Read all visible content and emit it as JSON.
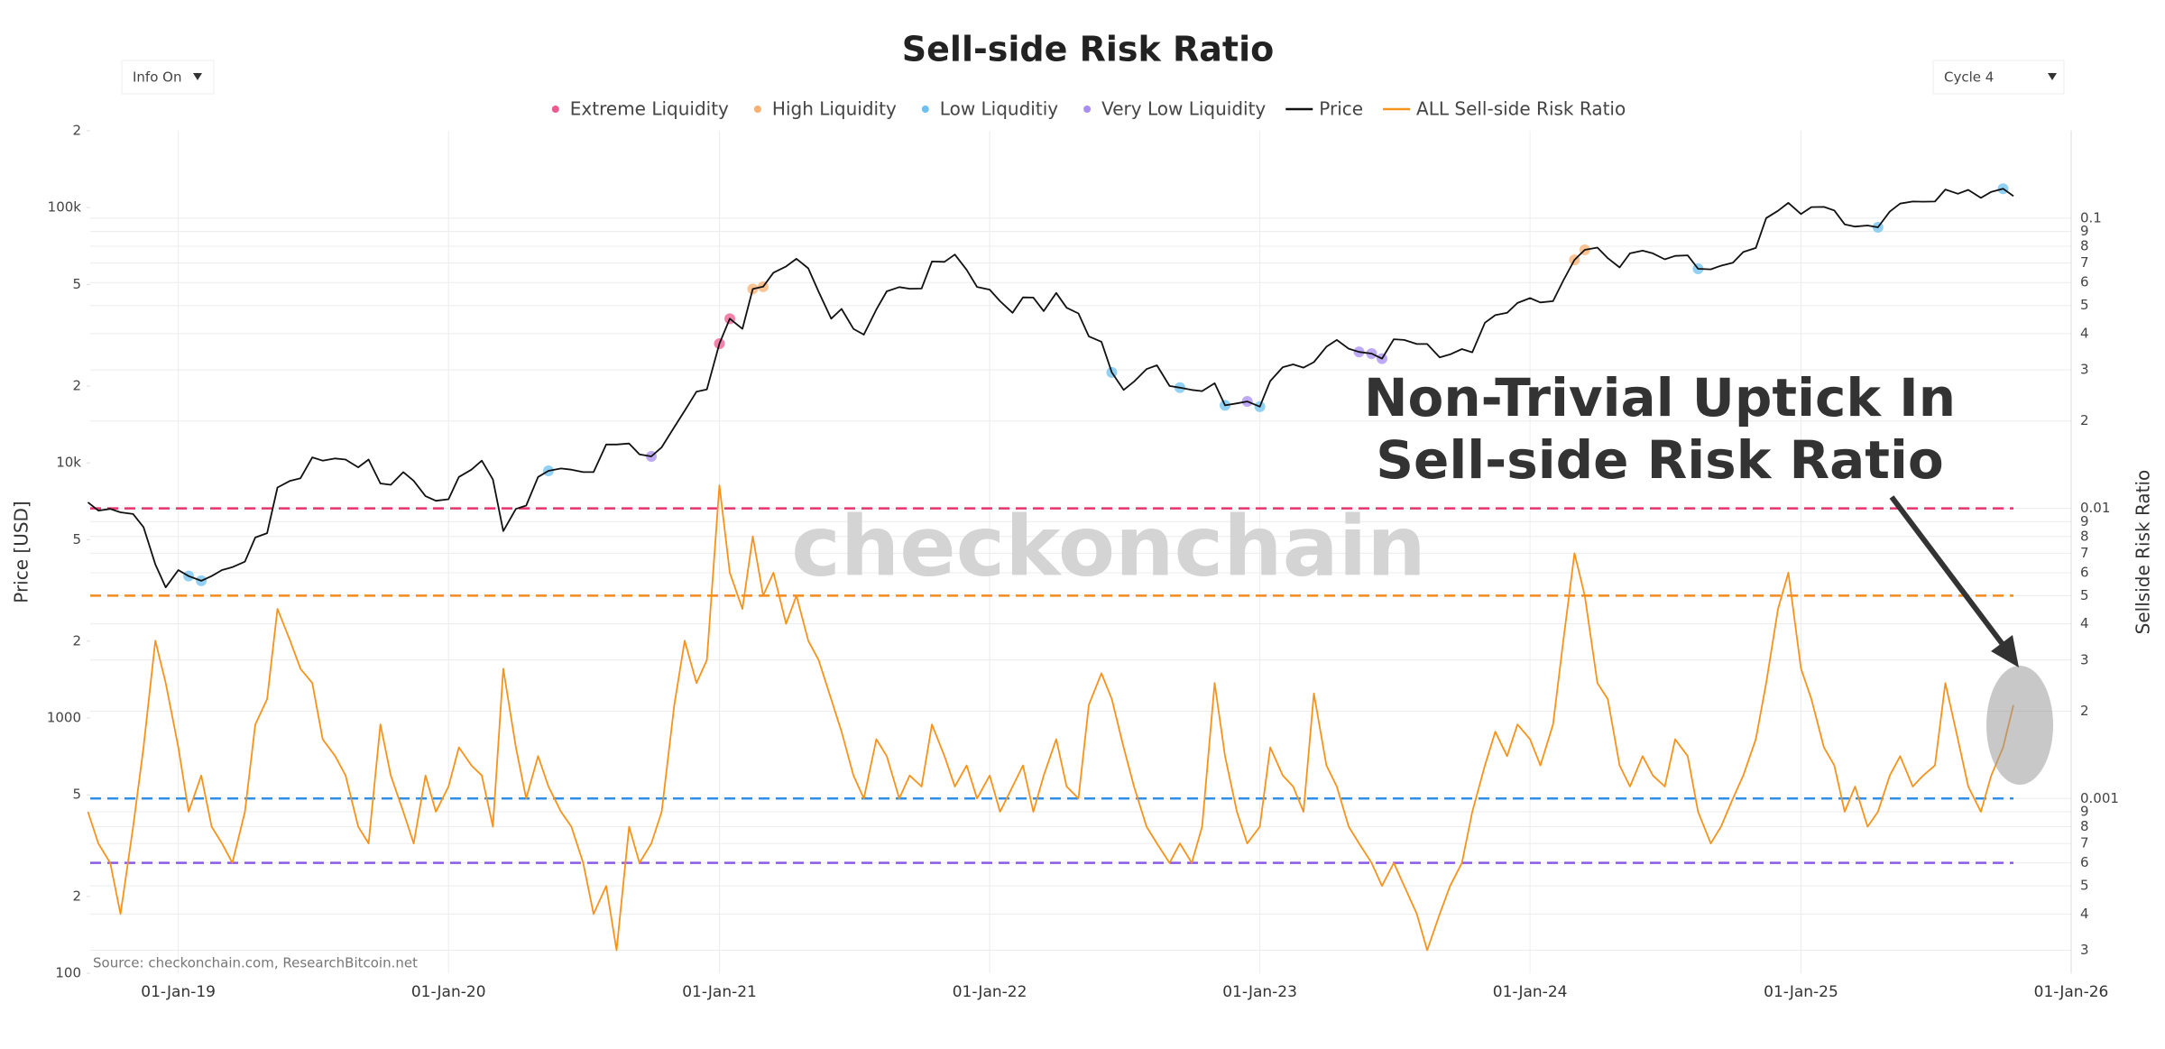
{
  "controls": {
    "info": "Info On",
    "cycle": "Cycle 4"
  },
  "chart_data": {
    "type": "line",
    "title": "Sell-side Risk Ratio",
    "y_label": "Price [USD]",
    "y2_label": "Sellside Risk Ratio",
    "watermark": "checkonchain",
    "source": "Source: checkonchain.com, ResearchBitcoin.net",
    "annotation": [
      "Non-Trivial Uptick In",
      "Sell-side Risk Ratio"
    ],
    "ylog": true,
    "y2log": true,
    "grid": true,
    "xlim": [
      "2018-09-04",
      "2026-01-01"
    ],
    "xticks": [
      {
        "value": "2019-01-01",
        "label": "01-Jan-19"
      },
      {
        "value": "2020-01-01",
        "label": "01-Jan-20"
      },
      {
        "value": "2021-01-01",
        "label": "01-Jan-21"
      },
      {
        "value": "2022-01-01",
        "label": "01-Jan-22"
      },
      {
        "value": "2023-01-01",
        "label": "01-Jan-23"
      },
      {
        "value": "2024-01-01",
        "label": "01-Jan-24"
      },
      {
        "value": "2025-01-01",
        "label": "01-Jan-25"
      },
      {
        "value": "2026-01-01",
        "label": "01-Jan-26"
      }
    ],
    "ylim": [
      100,
      200000
    ],
    "yticks": [
      100,
      {
        "value": 200,
        "label": "2"
      },
      {
        "value": 500,
        "label": "5"
      },
      1000,
      {
        "value": 2000,
        "label": "2"
      },
      {
        "value": 5000,
        "label": "5"
      },
      {
        "value": 10000,
        "label": "10k"
      },
      {
        "value": 20000,
        "label": "2"
      },
      {
        "value": 50000,
        "label": "5"
      },
      {
        "value": 100000,
        "label": "100k"
      },
      {
        "value": 200000,
        "label": "2"
      }
    ],
    "y2lim": [
      0.00025,
      0.2
    ],
    "y2ticks": [
      {
        "value": 0.0003,
        "label": "3"
      },
      {
        "value": 0.0004,
        "label": "4"
      },
      {
        "value": 0.0005,
        "label": "5"
      },
      {
        "value": 0.0006,
        "label": "6"
      },
      {
        "value": 0.0007,
        "label": "7"
      },
      {
        "value": 0.0008,
        "label": "8"
      },
      {
        "value": 0.0009,
        "label": "9"
      },
      0.001,
      {
        "value": 0.002,
        "label": "2"
      },
      {
        "value": 0.003,
        "label": "3"
      },
      {
        "value": 0.004,
        "label": "4"
      },
      {
        "value": 0.005,
        "label": "5"
      },
      {
        "value": 0.006,
        "label": "6"
      },
      {
        "value": 0.007,
        "label": "7"
      },
      {
        "value": 0.008,
        "label": "8"
      },
      {
        "value": 0.009,
        "label": "9"
      },
      0.01,
      {
        "value": 0.02,
        "label": "2"
      },
      {
        "value": 0.03,
        "label": "3"
      },
      {
        "value": 0.04,
        "label": "4"
      },
      {
        "value": 0.05,
        "label": "5"
      },
      {
        "value": 0.06,
        "label": "6"
      },
      {
        "value": 0.07,
        "label": "7"
      },
      {
        "value": 0.08,
        "label": "8"
      },
      {
        "value": 0.09,
        "label": "9"
      },
      0.1
    ],
    "thresholds": [
      {
        "value": 0.01,
        "color": "#e8336d"
      },
      {
        "value": 0.005,
        "color": "#f58a1f"
      },
      {
        "value": 0.001,
        "color": "#2f8fe8"
      },
      {
        "value": 0.0006,
        "color": "#8a5be8"
      }
    ],
    "x": [
      "2018-09-01",
      "2018-09-15",
      "2018-10-01",
      "2018-10-15",
      "2018-11-01",
      "2018-11-15",
      "2018-12-01",
      "2018-12-15",
      "2019-01-01",
      "2019-01-15",
      "2019-02-01",
      "2019-02-15",
      "2019-03-01",
      "2019-03-15",
      "2019-04-01",
      "2019-04-15",
      "2019-05-01",
      "2019-05-15",
      "2019-06-01",
      "2019-06-15",
      "2019-07-01",
      "2019-07-15",
      "2019-08-01",
      "2019-08-15",
      "2019-09-01",
      "2019-09-15",
      "2019-10-01",
      "2019-10-15",
      "2019-11-01",
      "2019-11-15",
      "2019-12-01",
      "2019-12-15",
      "2020-01-01",
      "2020-01-15",
      "2020-02-01",
      "2020-02-15",
      "2020-03-01",
      "2020-03-15",
      "2020-04-01",
      "2020-04-15",
      "2020-05-01",
      "2020-05-15",
      "2020-06-01",
      "2020-06-15",
      "2020-07-01",
      "2020-07-15",
      "2020-08-01",
      "2020-08-15",
      "2020-09-01",
      "2020-09-15",
      "2020-10-01",
      "2020-10-15",
      "2020-11-01",
      "2020-11-15",
      "2020-12-01",
      "2020-12-15",
      "2021-01-01",
      "2021-01-15",
      "2021-02-01",
      "2021-02-15",
      "2021-03-01",
      "2021-03-15",
      "2021-04-01",
      "2021-04-15",
      "2021-05-01",
      "2021-05-15",
      "2021-06-01",
      "2021-06-15",
      "2021-07-01",
      "2021-07-15",
      "2021-08-01",
      "2021-08-15",
      "2021-09-01",
      "2021-09-15",
      "2021-10-01",
      "2021-10-15",
      "2021-11-01",
      "2021-11-15",
      "2021-12-01",
      "2021-12-15",
      "2022-01-01",
      "2022-01-15",
      "2022-02-01",
      "2022-02-15",
      "2022-03-01",
      "2022-03-15",
      "2022-04-01",
      "2022-04-15",
      "2022-05-01",
      "2022-05-15",
      "2022-06-01",
      "2022-06-15",
      "2022-07-01",
      "2022-07-15",
      "2022-08-01",
      "2022-08-15",
      "2022-09-01",
      "2022-09-15",
      "2022-10-01",
      "2022-10-15",
      "2022-11-01",
      "2022-11-15",
      "2022-12-01",
      "2022-12-15",
      "2023-01-01",
      "2023-01-15",
      "2023-02-01",
      "2023-02-15",
      "2023-03-01",
      "2023-03-15",
      "2023-04-01",
      "2023-04-15",
      "2023-05-01",
      "2023-05-15",
      "2023-06-01",
      "2023-06-15",
      "2023-07-01",
      "2023-07-15",
      "2023-08-01",
      "2023-08-15",
      "2023-09-01",
      "2023-09-15",
      "2023-10-01",
      "2023-10-15",
      "2023-11-01",
      "2023-11-15",
      "2023-12-01",
      "2023-12-15",
      "2024-01-01",
      "2024-01-15",
      "2024-02-01",
      "2024-02-15",
      "2024-03-01",
      "2024-03-15",
      "2024-04-01",
      "2024-04-15",
      "2024-05-01",
      "2024-05-15",
      "2024-06-01",
      "2024-06-15",
      "2024-07-01",
      "2024-07-15",
      "2024-08-01",
      "2024-08-15",
      "2024-09-01",
      "2024-09-15",
      "2024-10-01",
      "2024-10-15",
      "2024-11-01",
      "2024-11-15",
      "2024-12-01",
      "2024-12-15",
      "2025-01-01",
      "2025-01-15",
      "2025-02-01",
      "2025-02-15",
      "2025-03-01",
      "2025-03-15",
      "2025-04-01",
      "2025-04-15",
      "2025-05-01",
      "2025-05-15",
      "2025-06-01",
      "2025-06-15",
      "2025-07-01",
      "2025-07-15",
      "2025-08-01",
      "2025-08-15",
      "2025-09-01",
      "2025-09-15",
      "2025-10-01",
      "2025-10-15"
    ],
    "series": [
      {
        "name": "Extreme Liquidity",
        "color": "#ee5a8f",
        "mode": "markers",
        "axis": "y",
        "x": [
          "2021-01-01",
          "2021-01-15"
        ],
        "values": [
          29300,
          36700
        ]
      },
      {
        "name": "High Liquidity",
        "color": "#f9b070",
        "mode": "markers",
        "axis": "y",
        "x": [
          "2021-02-15",
          "2021-03-01",
          "2024-03-01",
          "2024-03-15"
        ],
        "values": [
          48000,
          49000,
          62400,
          68300
        ]
      },
      {
        "name": "Low Liquditiy",
        "color": "#6ec0f0",
        "mode": "markers",
        "axis": "y",
        "x": [
          "2019-01-15",
          "2019-02-01",
          "2020-05-15",
          "2022-06-15",
          "2022-09-15",
          "2022-11-15",
          "2023-01-01",
          "2024-08-15",
          "2025-04-15",
          "2025-10-01"
        ],
        "values": [
          3600,
          3450,
          9300,
          22600,
          19700,
          16800,
          16600,
          57600,
          83700,
          118600
        ]
      },
      {
        "name": "Very Low Liquidity",
        "color": "#a88ef0",
        "mode": "markers",
        "axis": "y",
        "x": [
          "2020-10-01",
          "2022-12-15",
          "2023-05-15",
          "2023-06-01",
          "2023-06-15"
        ],
        "values": [
          10600,
          17400,
          27200,
          26800,
          25600
        ]
      },
      {
        "name": "Price",
        "color": "#111111",
        "mode": "line",
        "axis": "y",
        "values": [
          7000,
          6500,
          6600,
          6400,
          6300,
          5600,
          4000,
          3250,
          3800,
          3600,
          3450,
          3600,
          3800,
          3900,
          4100,
          5100,
          5300,
          8000,
          8500,
          8700,
          10500,
          10200,
          10400,
          10300,
          9600,
          10300,
          8300,
          8200,
          9200,
          8500,
          7400,
          7100,
          7200,
          8800,
          9400,
          10200,
          8600,
          5400,
          6600,
          6800,
          8800,
          9300,
          9500,
          9400,
          9200,
          9200,
          11800,
          11800,
          11900,
          10800,
          10600,
          11500,
          13800,
          16000,
          19000,
          19400,
          29300,
          36700,
          33500,
          48000,
          49000,
          55600,
          58800,
          63000,
          57800,
          46800,
          36700,
          40100,
          33500,
          31800,
          39900,
          47000,
          48800,
          48100,
          48200,
          61500,
          61300,
          65500,
          57000,
          48900,
          47700,
          43000,
          38700,
          44500,
          44400,
          39300,
          46300,
          40500,
          38500,
          31300,
          29800,
          22600,
          19300,
          20800,
          23300,
          24100,
          20000,
          19700,
          19300,
          19100,
          20500,
          16800,
          17100,
          17400,
          16600,
          20900,
          23700,
          24300,
          23600,
          24800,
          28500,
          30300,
          28000,
          27200,
          26800,
          25600,
          30500,
          30300,
          29200,
          29200,
          25900,
          26600,
          27900,
          27100,
          35400,
          37900,
          38700,
          42300,
          44200,
          42500,
          43000,
          51800,
          62400,
          68300,
          69700,
          63400,
          58300,
          66200,
          67800,
          66200,
          62700,
          64700,
          65000,
          57600,
          57300,
          59200,
          60800,
          67000,
          69500,
          91000,
          97200,
          104400,
          94400,
          100500,
          100600,
          97500,
          86000,
          84300,
          85100,
          83700,
          96500,
          103700,
          105700,
          105500,
          105700,
          117700,
          113300,
          117400,
          109200,
          115300,
          118600,
          111000
        ]
      },
      {
        "name": "ALL Sell-side Risk Ratio",
        "color": "#f7931a",
        "mode": "line",
        "axis": "y2",
        "values": [
          0.0009,
          0.0007,
          0.0006,
          0.0004,
          0.0008,
          0.0015,
          0.0035,
          0.0025,
          0.0015,
          0.0009,
          0.0012,
          0.0008,
          0.0007,
          0.0006,
          0.0009,
          0.0018,
          0.0022,
          0.0045,
          0.0035,
          0.0028,
          0.0025,
          0.0016,
          0.0014,
          0.0012,
          0.0008,
          0.0007,
          0.0018,
          0.0012,
          0.0009,
          0.0007,
          0.0012,
          0.0009,
          0.0011,
          0.0015,
          0.0013,
          0.0012,
          0.0008,
          0.0028,
          0.0015,
          0.001,
          0.0014,
          0.0011,
          0.0009,
          0.0008,
          0.0006,
          0.0004,
          0.0005,
          0.0003,
          0.0008,
          0.0006,
          0.0007,
          0.0009,
          0.0021,
          0.0035,
          0.0025,
          0.003,
          0.012,
          0.006,
          0.0045,
          0.008,
          0.005,
          0.006,
          0.004,
          0.005,
          0.0035,
          0.003,
          0.0022,
          0.0017,
          0.0012,
          0.001,
          0.0016,
          0.0014,
          0.001,
          0.0012,
          0.0011,
          0.0018,
          0.0014,
          0.0011,
          0.0013,
          0.001,
          0.0012,
          0.0009,
          0.0011,
          0.0013,
          0.0009,
          0.0012,
          0.0016,
          0.0011,
          0.001,
          0.0021,
          0.0027,
          0.0022,
          0.0015,
          0.0011,
          0.0008,
          0.0007,
          0.0006,
          0.0007,
          0.0006,
          0.0008,
          0.0025,
          0.0014,
          0.0009,
          0.0007,
          0.0008,
          0.0015,
          0.0012,
          0.0011,
          0.0009,
          0.0023,
          0.0013,
          0.0011,
          0.0008,
          0.0007,
          0.0006,
          0.0005,
          0.0006,
          0.0005,
          0.0004,
          0.0003,
          0.0004,
          0.0005,
          0.0006,
          0.0009,
          0.0013,
          0.0017,
          0.0014,
          0.0018,
          0.0016,
          0.0013,
          0.0018,
          0.0035,
          0.007,
          0.005,
          0.0025,
          0.0022,
          0.0013,
          0.0011,
          0.0014,
          0.0012,
          0.0011,
          0.0016,
          0.0014,
          0.0009,
          0.0007,
          0.0008,
          0.001,
          0.0012,
          0.0016,
          0.0025,
          0.0045,
          0.006,
          0.0028,
          0.0022,
          0.0015,
          0.0013,
          0.0009,
          0.0011,
          0.0008,
          0.0009,
          0.0012,
          0.0014,
          0.0011,
          0.0012,
          0.0013,
          0.0025,
          0.0016,
          0.0011,
          0.0009,
          0.0012,
          0.0015,
          0.0021
        ]
      }
    ]
  }
}
